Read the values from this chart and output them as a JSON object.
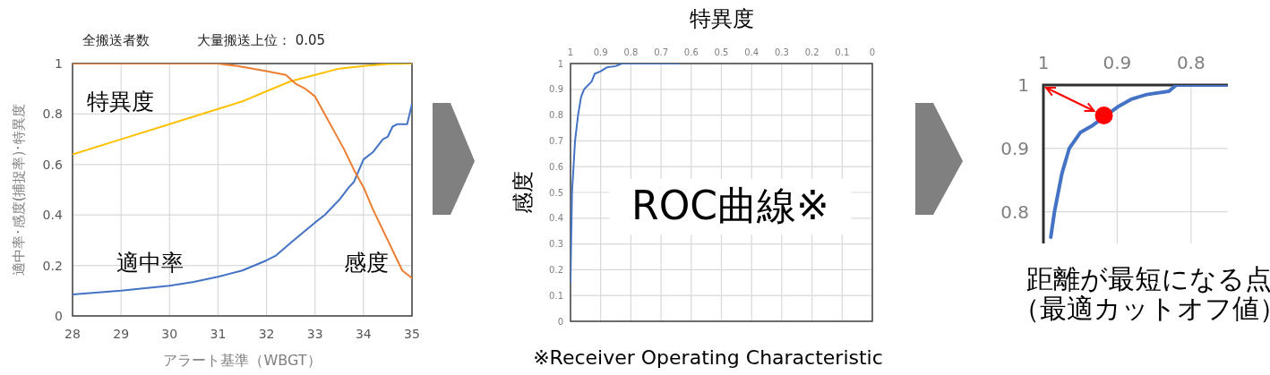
{
  "chart_data": [
    {
      "type": "line",
      "title": "全搬送者数",
      "subtitle": "大量搬送上位： 0.05",
      "xlabel": "アラート基準（WBGT）",
      "ylabel": "適中率･感度(捕捉率)･特異度",
      "xlim": [
        28,
        35
      ],
      "xticks": [
        28,
        29,
        30,
        31,
        32,
        33,
        34,
        35
      ],
      "ylim": [
        0,
        1
      ],
      "yticks": [
        0,
        0.2,
        0.4,
        0.6,
        0.8,
        1
      ],
      "grid": true,
      "series": [
        {
          "name": "特異度",
          "color": "#ffc000",
          "x": [
            28,
            29,
            30,
            30.5,
            31,
            31.5,
            32,
            32.5,
            33,
            33.5,
            34,
            34.5,
            35
          ],
          "values": [
            0.64,
            0.7,
            0.76,
            0.79,
            0.82,
            0.85,
            0.89,
            0.93,
            0.955,
            0.98,
            0.99,
            0.998,
            1
          ]
        },
        {
          "name": "適中率",
          "color": "#4472c4",
          "x": [
            28,
            29,
            30,
            30.5,
            31,
            31.5,
            32,
            32.2,
            32.5,
            33,
            33.2,
            33.5,
            33.7,
            33.8,
            34,
            34.2,
            34.4,
            34.5,
            34.6,
            34.7,
            34.9,
            35
          ],
          "values": [
            0.085,
            0.1,
            0.12,
            0.135,
            0.155,
            0.18,
            0.22,
            0.24,
            0.29,
            0.37,
            0.4,
            0.46,
            0.51,
            0.53,
            0.62,
            0.65,
            0.7,
            0.71,
            0.75,
            0.76,
            0.76,
            0.84
          ]
        },
        {
          "name": "感度",
          "color": "#ed7d31",
          "x": [
            28,
            31,
            31.4,
            32,
            32.4,
            32.6,
            32.8,
            33,
            33.2,
            33.4,
            33.6,
            33.8,
            34,
            34.2,
            34.3,
            34.5,
            34.7,
            34.8,
            35
          ],
          "values": [
            1,
            1,
            0.99,
            0.97,
            0.955,
            0.92,
            0.9,
            0.87,
            0.8,
            0.73,
            0.66,
            0.58,
            0.51,
            0.42,
            0.38,
            0.3,
            0.22,
            0.18,
            0.15
          ]
        }
      ]
    },
    {
      "type": "line",
      "xlabel": "特異度",
      "ylabel": "感度",
      "xlim": [
        1,
        0
      ],
      "xticks": [
        1,
        0.9,
        0.8,
        0.7,
        0.6,
        0.5,
        0.4,
        0.3,
        0.2,
        0.1,
        0
      ],
      "ylim": [
        0,
        1
      ],
      "yticks": [
        0,
        0.1,
        0.2,
        0.3,
        0.4,
        0.5,
        0.6,
        0.7,
        0.8,
        0.9,
        1
      ],
      "grid": true,
      "annotations": [
        "ROC曲線※",
        "※Receiver Operating Characteristic"
      ],
      "series": [
        {
          "color": "#4472c4",
          "x": [
            1,
            0.998,
            0.995,
            0.99,
            0.985,
            0.975,
            0.965,
            0.955,
            0.93,
            0.92,
            0.9,
            0.88,
            0.85,
            0.83,
            0.64
          ],
          "values": [
            0.15,
            0.3,
            0.5,
            0.6,
            0.7,
            0.8,
            0.87,
            0.9,
            0.93,
            0.96,
            0.97,
            0.985,
            0.99,
            1,
            1
          ]
        }
      ]
    },
    {
      "type": "line",
      "xlim": [
        1,
        0.75
      ],
      "xticks": [
        1,
        0.9,
        0.8
      ],
      "ylim": [
        0.75,
        1
      ],
      "yticks": [
        0.8,
        0.9,
        1
      ],
      "grid": true,
      "annotations": [
        "距離が最短になる点",
        "（最適カットオフ値）"
      ],
      "series": [
        {
          "color": "#4472c4",
          "x": [
            0.99,
            0.985,
            0.975,
            0.965,
            0.95,
            0.935,
            0.9,
            0.88,
            0.86,
            0.83,
            0.82,
            0.75
          ],
          "values": [
            0.76,
            0.8,
            0.86,
            0.9,
            0.925,
            0.935,
            0.965,
            0.978,
            0.985,
            0.99,
            1,
            1
          ]
        },
        {
          "type": "scatter",
          "color": "#ff0000",
          "x": [
            0.918
          ],
          "values": [
            0.952
          ]
        }
      ]
    }
  ]
}
